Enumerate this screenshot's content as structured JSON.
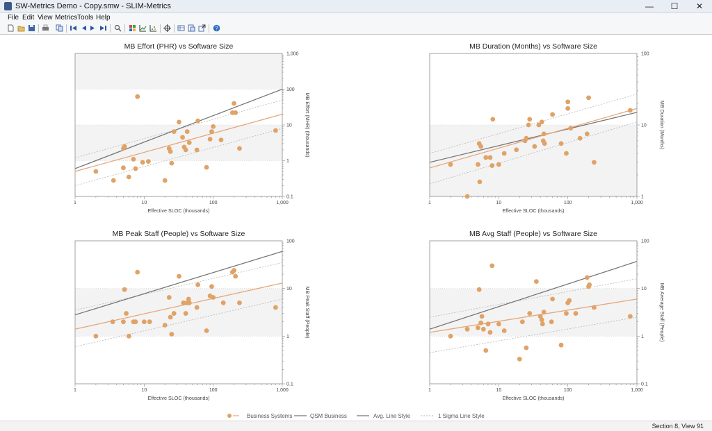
{
  "window": {
    "title": "SW-Metrics Demo - Copy.smw - SLIM-Metrics",
    "minimize_glyph": "—",
    "maximize_glyph": "☐",
    "close_glyph": "✕"
  },
  "menu": [
    "File",
    "Edit",
    "View",
    "Metrics",
    "Tools",
    "Help"
  ],
  "toolbar_icons": [
    "new-icon",
    "open-icon",
    "save-icon",
    "print-icon",
    "copy-icon",
    "first-icon",
    "prev-icon",
    "next-icon",
    "last-icon",
    "find-icon",
    "grid-icon",
    "line-chart-icon",
    "scatter-icon",
    "target-icon",
    "table-icon",
    "report-icon",
    "export-icon",
    "help-icon"
  ],
  "colors": {
    "points": "#e0a266",
    "fit": "#e6a77a",
    "qsm": "#777777",
    "sigma": "#b5b5b5",
    "band": "#f3f3f3"
  },
  "chart_data": [
    {
      "type": "scatter",
      "title": "MB Effort (PHR) vs Software Size",
      "xlabel": "Effective SLOC (thousands)",
      "ylabel": "MB Effort (MHR) (thousands)",
      "xscale": "log",
      "yscale": "log",
      "xlim": [
        1,
        1000
      ],
      "ylim": [
        0.1,
        1000
      ],
      "xticks": [
        "1",
        "10",
        "100",
        "1,000"
      ],
      "yticks": [
        "0.1",
        "1",
        "10",
        "100",
        "1,000"
      ],
      "band": [
        1,
        10
      ],
      "fit": [
        [
          1,
          0.5
        ],
        [
          1000,
          20
        ]
      ],
      "qsm": [
        [
          1,
          0.6
        ],
        [
          1000,
          100
        ]
      ],
      "sigma_upper": [
        [
          1,
          1.2
        ],
        [
          1000,
          50
        ]
      ],
      "sigma_lower": [
        [
          1,
          0.2
        ],
        [
          1000,
          8
        ]
      ],
      "points": [
        [
          2,
          0.5
        ],
        [
          3.6,
          0.28
        ],
        [
          5,
          0.63
        ],
        [
          5,
          2.2
        ],
        [
          5.2,
          2.5
        ],
        [
          6,
          0.35
        ],
        [
          7,
          1.1
        ],
        [
          7.5,
          0.6
        ],
        [
          8,
          62
        ],
        [
          9.5,
          0.9
        ],
        [
          11.5,
          0.95
        ],
        [
          20,
          0.28
        ],
        [
          23,
          2.2
        ],
        [
          24,
          1.8
        ],
        [
          25,
          0.85
        ],
        [
          27,
          6.5
        ],
        [
          32,
          12
        ],
        [
          36,
          4.5
        ],
        [
          38,
          2.4
        ],
        [
          40,
          2
        ],
        [
          42,
          6.5
        ],
        [
          45,
          3.2
        ],
        [
          58,
          2
        ],
        [
          60,
          13
        ],
        [
          80,
          0.65
        ],
        [
          90,
          4
        ],
        [
          95,
          6.5
        ],
        [
          100,
          9
        ],
        [
          130,
          3.8
        ],
        [
          190,
          22
        ],
        [
          200,
          40
        ],
        [
          210,
          22
        ],
        [
          240,
          2.2
        ],
        [
          800,
          7
        ]
      ]
    },
    {
      "type": "scatter",
      "title": "MB Duration (Months) vs Software Size",
      "xlabel": "Effective SLOC (thousands)",
      "ylabel": "MB Duration (Months)",
      "xscale": "log",
      "yscale": "log",
      "xlim": [
        1,
        1000
      ],
      "ylim": [
        1,
        100
      ],
      "xticks": [
        "1",
        "10",
        "100",
        "1,000"
      ],
      "yticks": [
        "1",
        "10",
        "100"
      ],
      "band": [
        1,
        10
      ],
      "fit": [
        [
          1,
          2.5
        ],
        [
          1000,
          17
        ]
      ],
      "qsm": [
        [
          1,
          3
        ],
        [
          1000,
          15
        ]
      ],
      "sigma_upper": [
        [
          1,
          4
        ],
        [
          1000,
          27
        ]
      ],
      "sigma_lower": [
        [
          1,
          1.5
        ],
        [
          1000,
          11
        ]
      ],
      "points": [
        [
          2,
          2.8
        ],
        [
          3.5,
          1
        ],
        [
          5,
          2.8
        ],
        [
          5.2,
          5.5
        ],
        [
          5.3,
          1.6
        ],
        [
          5.5,
          5
        ],
        [
          6.5,
          3.5
        ],
        [
          7.5,
          3.5
        ],
        [
          8,
          2.7
        ],
        [
          8.2,
          12
        ],
        [
          10,
          2.8
        ],
        [
          12,
          4
        ],
        [
          18,
          4.5
        ],
        [
          24,
          6
        ],
        [
          25,
          6.5
        ],
        [
          27,
          10
        ],
        [
          28,
          12
        ],
        [
          33,
          5
        ],
        [
          38,
          10
        ],
        [
          42,
          11
        ],
        [
          44,
          6
        ],
        [
          45,
          7.5
        ],
        [
          46,
          5.5
        ],
        [
          60,
          14
        ],
        [
          80,
          5.5
        ],
        [
          95,
          4
        ],
        [
          100,
          17
        ],
        [
          100,
          21
        ],
        [
          110,
          9
        ],
        [
          150,
          6.5
        ],
        [
          190,
          7.5
        ],
        [
          200,
          24
        ],
        [
          240,
          3
        ],
        [
          800,
          16
        ]
      ]
    },
    {
      "type": "scatter",
      "title": "MB Peak Staff (People) vs Software Size",
      "xlabel": "Effective SLOC (thousands)",
      "ylabel": "MB Peak Staff (People)",
      "xscale": "log",
      "yscale": "log",
      "xlim": [
        1,
        1000
      ],
      "ylim": [
        0.1,
        100
      ],
      "xticks": [
        "1",
        "10",
        "100",
        "1,000"
      ],
      "yticks": [
        "0.1",
        "1",
        "10",
        "100"
      ],
      "band": [
        1,
        10
      ],
      "fit": [
        [
          1,
          1.4
        ],
        [
          1000,
          13
        ]
      ],
      "qsm": [
        [
          1,
          2.8
        ],
        [
          1000,
          60
        ]
      ],
      "sigma_upper": [
        [
          1,
          3.5
        ],
        [
          1000,
          35
        ]
      ],
      "sigma_lower": [
        [
          1,
          0.6
        ],
        [
          1000,
          6
        ]
      ],
      "points": [
        [
          2,
          1
        ],
        [
          3.5,
          2
        ],
        [
          5,
          2
        ],
        [
          5.2,
          9.5
        ],
        [
          5.5,
          3
        ],
        [
          6,
          1
        ],
        [
          7,
          2
        ],
        [
          7.5,
          2
        ],
        [
          8,
          22
        ],
        [
          10,
          2
        ],
        [
          12,
          2
        ],
        [
          20,
          1.7
        ],
        [
          23,
          6.5
        ],
        [
          24,
          2.5
        ],
        [
          25,
          1.1
        ],
        [
          27,
          3
        ],
        [
          32,
          18
        ],
        [
          37,
          5
        ],
        [
          40,
          3
        ],
        [
          42,
          5
        ],
        [
          44,
          6
        ],
        [
          45,
          5
        ],
        [
          58,
          4
        ],
        [
          60,
          12
        ],
        [
          80,
          1.3
        ],
        [
          90,
          7
        ],
        [
          95,
          11
        ],
        [
          100,
          6.5
        ],
        [
          140,
          5
        ],
        [
          190,
          22
        ],
        [
          200,
          24
        ],
        [
          210,
          18
        ],
        [
          240,
          5
        ],
        [
          800,
          4
        ]
      ]
    },
    {
      "type": "scatter",
      "title": "MB Avg Staff (People) vs Software Size",
      "xlabel": "Effective SLOC (thousands)",
      "ylabel": "MB Average Staff (People)",
      "xscale": "log",
      "yscale": "log",
      "xlim": [
        1,
        1000
      ],
      "ylim": [
        0.1,
        100
      ],
      "xticks": [
        "1",
        "10",
        "100",
        "1,000"
      ],
      "yticks": [
        "0.1",
        "1",
        "10",
        "100"
      ],
      "band": [
        1,
        10
      ],
      "fit": [
        [
          1,
          1.2
        ],
        [
          1000,
          6
        ]
      ],
      "qsm": [
        [
          1,
          1.4
        ],
        [
          1000,
          37
        ]
      ],
      "sigma_upper": [
        [
          1,
          2.5
        ],
        [
          1000,
          16
        ]
      ],
      "sigma_lower": [
        [
          1,
          0.45
        ],
        [
          1000,
          2.5
        ]
      ],
      "points": [
        [
          2,
          1
        ],
        [
          3.5,
          1.4
        ],
        [
          5,
          1.5
        ],
        [
          5.2,
          9.5
        ],
        [
          5.5,
          1.9
        ],
        [
          5.7,
          2.6
        ],
        [
          6,
          1.4
        ],
        [
          6.5,
          0.5
        ],
        [
          7,
          1.8
        ],
        [
          7.5,
          1.2
        ],
        [
          8,
          30
        ],
        [
          10,
          1.8
        ],
        [
          12,
          1.3
        ],
        [
          20,
          0.33
        ],
        [
          22,
          2
        ],
        [
          25,
          0.57
        ],
        [
          28,
          3
        ],
        [
          35,
          14
        ],
        [
          40,
          2.6
        ],
        [
          42,
          2.2
        ],
        [
          43,
          1.8
        ],
        [
          45,
          3.2
        ],
        [
          58,
          2
        ],
        [
          60,
          6
        ],
        [
          80,
          0.65
        ],
        [
          95,
          3
        ],
        [
          100,
          5
        ],
        [
          105,
          5.6
        ],
        [
          130,
          3
        ],
        [
          190,
          17
        ],
        [
          200,
          11
        ],
        [
          205,
          12
        ],
        [
          240,
          4
        ],
        [
          800,
          2.6
        ]
      ]
    }
  ],
  "legend": {
    "items": [
      "Business Systems",
      "QSM Business",
      "Avg. Line Style",
      "1 Sigma Line Style"
    ]
  },
  "status": {
    "text": "Section 8, View 91"
  }
}
